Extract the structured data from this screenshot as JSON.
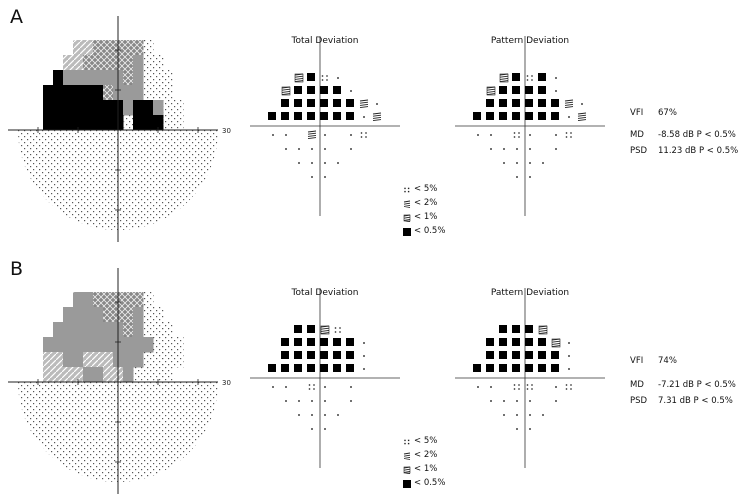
{
  "panels": [
    {
      "letter": "A",
      "field_axis_label": "30",
      "total_title": "Total Deviation",
      "pattern_title": "Pattern Deviation",
      "vfi_label": "VFI",
      "vfi_value": "67%",
      "md_label": "MD",
      "md_value": "-8.58 dB P < 0.5%",
      "psd_label": "PSD",
      "psd_value": "11.23 dB  P < 0.5%",
      "total_grid": [
        "  ~#:.  ",
        " ~####. ",
        " ######=.",
        "#######.=",
        ".. =. .:",
        " .... .",
        "  ....  ",
        "   ..   "
      ],
      "pattern_grid": [
        "  ~#:#. ",
        " ~####. ",
        " ######=.",
        "#######.=",
        ".. :. .:",
        " .... .",
        "  ....  ",
        "   ..   "
      ]
    },
    {
      "letter": "B",
      "field_axis_label": "30",
      "total_title": "Total Deviation",
      "pattern_title": "Pattern Deviation",
      "vfi_label": "VFI",
      "vfi_value": "74%",
      "md_label": "MD",
      "md_value": "-7.21 dB P < 0.5%",
      "psd_label": "PSD",
      "psd_value": "7.31 dB  P < 0.5%",
      "total_grid": [
        "  ##~:  ",
        " ######.",
        " ######.",
        "#######.",
        ".. :. . ",
        " .... .",
        "  ....  ",
        "   ..   "
      ],
      "pattern_grid": [
        "  ###~  ",
        " #####~.",
        " ######.",
        "#######.",
        ".. :: .:",
        " .... .",
        "  ....  ",
        "   ..   "
      ]
    }
  ],
  "legend": [
    {
      "symbol": "p5",
      "label": "< 5%"
    },
    {
      "symbol": "p2",
      "label": "< 2%"
    },
    {
      "symbol": "p1",
      "label": "< 1%"
    },
    {
      "symbol": "p05",
      "label": "< 0.5%"
    }
  ],
  "field_maps": [
    {
      "upper": [
        "   vvmmmmmd    ",
        "  vvmmmmmgdd   ",
        " kggggggmgddd  ",
        "kkkkkkmgggddd  ",
        "kkkkkkkkgkkgdd ",
        "kkkkkkkkdkkkdd "
      ]
    },
    {
      "upper": [
        "   ggmmmmmd    ",
        "  ggggmmmgdd   ",
        " gggggggmgddd  ",
        "gggggggggggddd ",
        "vvggvvvgggdddd ",
        "vvvvggvvgdddd  "
      ]
    }
  ]
}
